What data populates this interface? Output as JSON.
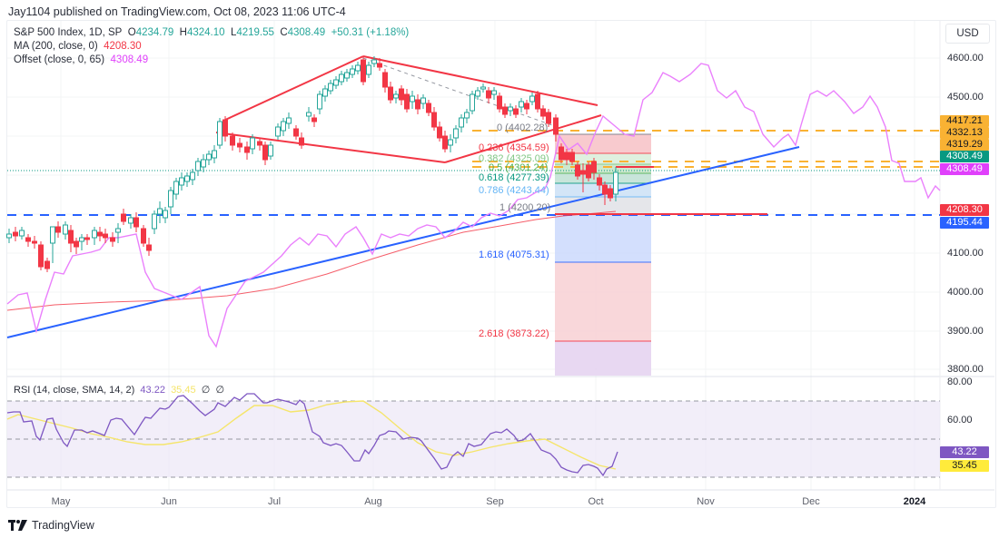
{
  "header": {
    "published": "Jay1104 published on TradingView.com, Oct 08, 2023 11:06 UTC-4"
  },
  "legend": {
    "symbol": "S&P 500 Index, 1D, SP",
    "open_label": "O",
    "open": "4234.79",
    "high_label": "H",
    "high": "4324.10",
    "low_label": "L",
    "low": "4219.55",
    "close_label": "C",
    "close": "4308.49",
    "change": "+50.31 (+1.18%)",
    "ma_label": "MA (200, close, 0)",
    "ma_value": "4208.30",
    "offset_label": "Offset (close, 0, 65)",
    "offset_value": "4308.49"
  },
  "rsi_legend": {
    "label": "RSI (14, close, SMA, 14, 2)",
    "rsi": "43.22",
    "sma": "35.45",
    "na1": "∅",
    "na2": "∅"
  },
  "price_axis": {
    "currency": "USD",
    "ticks": [
      "4600.00",
      "4500.00",
      "4100.00",
      "4000.00",
      "3900.00",
      "3800.00"
    ],
    "tags": [
      {
        "value": "4417.21",
        "bg": "#f9b233",
        "fg": "#131722"
      },
      {
        "value": "4332.13",
        "bg": "#f9b233",
        "fg": "#131722"
      },
      {
        "value": "4319.29",
        "bg": "#f9b233",
        "fg": "#131722"
      },
      {
        "value": "4308.49",
        "bg": "#089981",
        "fg": "#ffffff"
      },
      {
        "value": "4308.49",
        "bg": "#e040fb",
        "fg": "#ffffff"
      },
      {
        "value": "4208.30",
        "bg": "#f23645",
        "fg": "#ffffff"
      },
      {
        "value": "4195.44",
        "bg": "#2962ff",
        "fg": "#ffffff"
      }
    ]
  },
  "rsi_axis": {
    "ticks": [
      "80.00",
      "60.00"
    ],
    "tags": [
      {
        "value": "43.22",
        "bg": "#7e57c2",
        "fg": "#ffffff"
      },
      {
        "value": "35.45",
        "bg": "#ffeb3b",
        "fg": "#131722"
      }
    ]
  },
  "time_axis": {
    "ticks": [
      "May",
      "Jun",
      "Jul",
      "Aug",
      "Sep",
      "Oct",
      "Nov",
      "Dec",
      "2024"
    ]
  },
  "fib_levels": [
    {
      "label": "0 (4402.28)",
      "color": "#787b86"
    },
    {
      "label": "0.236 (4354.59)",
      "color": "#f23645"
    },
    {
      "label": "0.382 (4325.09)",
      "color": "#81c784"
    },
    {
      "label": "0.5 (4301.24)",
      "color": "#4caf50"
    },
    {
      "label": "0.618 (4277.39)",
      "color": "#089981"
    },
    {
      "label": "0.786 (4243.44)",
      "color": "#64b5f6"
    },
    {
      "label": "1 (4200.20)",
      "color": "#787b86"
    },
    {
      "label": "1.618 (4075.31)",
      "color": "#2962ff"
    },
    {
      "label": "2.618 (3873.22)",
      "color": "#f23645"
    }
  ],
  "branding": {
    "logo_text": "TradingView"
  },
  "colors": {
    "up": "#26a69a",
    "down": "#f23645",
    "ma200": "#f23645",
    "offset": "#e040fb",
    "trendline": "#2962ff",
    "channel": "#f23645",
    "resistance": "#f9b233",
    "support": "#2962ff",
    "rsi": "#7e57c2",
    "rsi_sma": "#f5e56b"
  },
  "chart_data": [
    {
      "type": "candlestick",
      "title": "S&P 500 Index, 1D, SP",
      "xlabel": "",
      "ylabel": "USD",
      "x_ticks": [
        "May",
        "Jun",
        "Jul",
        "Aug",
        "Sep",
        "Oct",
        "Nov",
        "Dec",
        "2024"
      ],
      "ylim": [
        3780,
        4640
      ],
      "grid": true,
      "last_ohlc": {
        "open": 4234.79,
        "high": 4324.1,
        "low": 4219.55,
        "close": 4308.49,
        "change": 50.31,
        "change_pct": 1.18
      },
      "approx_closes_by_month": [
        {
          "x": "Apr end",
          "close": 4135
        },
        {
          "x": "May mid",
          "close": 4110
        },
        {
          "x": "Jun start",
          "close": 4240
        },
        {
          "x": "Jun mid",
          "close": 4410
        },
        {
          "x": "Jul start",
          "close": 4420
        },
        {
          "x": "Jul end",
          "close": 4590
        },
        {
          "x": "Aug mid",
          "close": 4400
        },
        {
          "x": "Aug end",
          "close": 4510
        },
        {
          "x": "Sep mid",
          "close": 4450
        },
        {
          "x": "Sep end",
          "close": 4288
        },
        {
          "x": "Oct 6",
          "close": 4308.49
        }
      ],
      "indicators": [
        {
          "name": "MA (200, close, 0)",
          "last": 4208.3
        },
        {
          "name": "Offset (close, 0, 65)",
          "last": 4308.49
        }
      ],
      "horizontal_levels": [
        4417.21,
        4332.13,
        4319.29,
        4195.44
      ],
      "fibonacci_retracement": [
        {
          "ratio": 0,
          "price": 4402.28
        },
        {
          "ratio": 0.236,
          "price": 4354.59
        },
        {
          "ratio": 0.382,
          "price": 4325.09
        },
        {
          "ratio": 0.5,
          "price": 4301.24
        },
        {
          "ratio": 0.618,
          "price": 4277.39
        },
        {
          "ratio": 0.786,
          "price": 4243.44
        },
        {
          "ratio": 1,
          "price": 4200.2
        },
        {
          "ratio": 1.618,
          "price": 4075.31
        },
        {
          "ratio": 2.618,
          "price": 3873.22
        }
      ],
      "annotations": [
        "Broadening wedge (red trendlines) Jun–Sep",
        "Rising blue trendline from Apr low",
        "Offset (65-bar) projection line in magenta extending into Jan 2024"
      ]
    },
    {
      "type": "line",
      "title": "RSI (14, close, SMA, 14, 2)",
      "ylim": [
        25,
        82
      ],
      "y_ticks": [
        "80.00",
        "60.00"
      ],
      "bands": [
        30,
        50,
        70
      ],
      "series": [
        {
          "name": "RSI",
          "last": 43.22
        },
        {
          "name": "RSI SMA",
          "last": 35.45
        }
      ]
    }
  ]
}
